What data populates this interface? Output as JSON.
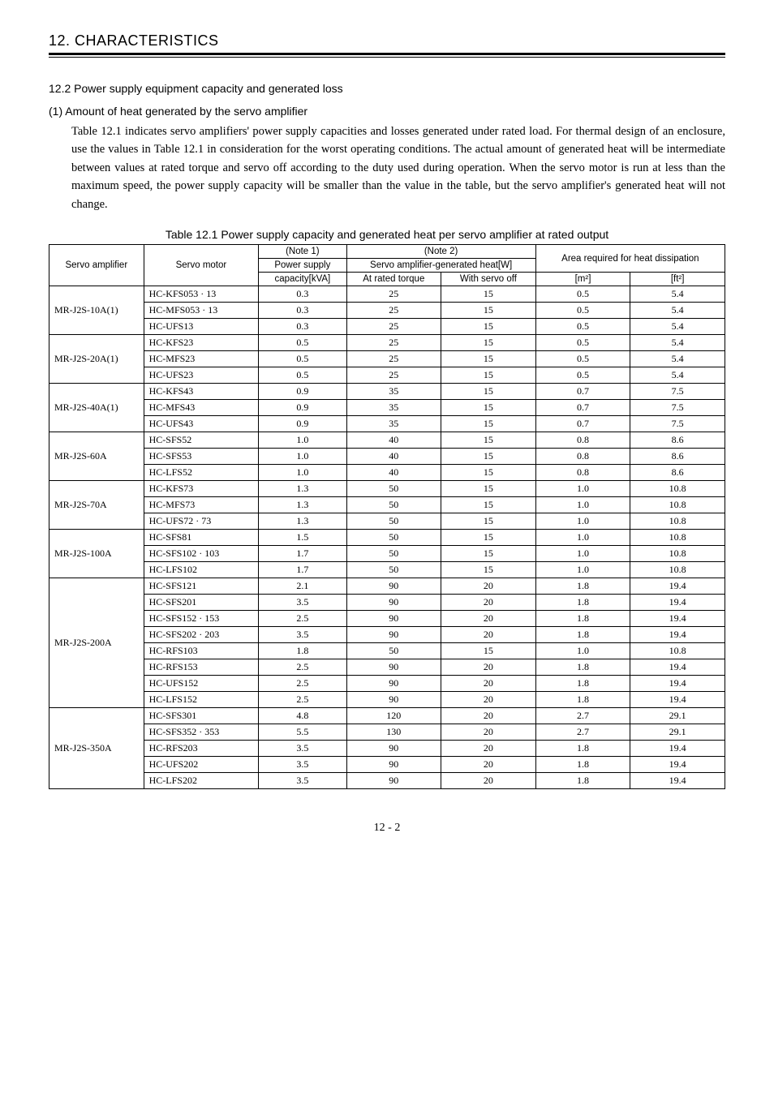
{
  "header": {
    "section_number": "12.",
    "section_title": "CHARACTERISTICS"
  },
  "subsection": {
    "number": "12.2",
    "title": "Power supply equipment capacity and generated loss"
  },
  "subsub": {
    "number": "(1)",
    "title": "Amount of heat generated by the servo amplifier"
  },
  "paragraph": "Table 12.1 indicates servo amplifiers' power supply capacities and losses generated under rated load. For thermal design of an enclosure, use the values in Table 12.1 in consideration for the worst operating conditions. The actual amount of generated heat will be intermediate between values at rated torque and servo off according to the duty used during operation. When the servo motor is run at less than the maximum speed, the power supply capacity will be smaller than the value in the table, but the servo amplifier's generated heat will not change.",
  "table": {
    "caption": "Table 12.1 Power supply capacity and generated heat per servo amplifier at rated output",
    "columns": {
      "amp": "Servo amplifier",
      "motor": "Servo motor",
      "note1": "(Note 1)",
      "power": "Power supply",
      "capacity": "capacity[kVA]",
      "note2": "(Note 2)",
      "heat": "Servo amplifier-generated heat[W]",
      "rated": "At rated torque",
      "off": "With servo off",
      "area": "Area required for heat dissipation",
      "m2": "[m²]",
      "ft2": "[ft²]"
    },
    "groups": [
      {
        "amp": "MR-J2S-10A(1)",
        "rows": [
          {
            "motor": "HC-KFS053 · 13",
            "cap": "0.3",
            "rt": "25",
            "off": "15",
            "m2": "0.5",
            "ft2": "5.4"
          },
          {
            "motor": "HC-MFS053 · 13",
            "cap": "0.3",
            "rt": "25",
            "off": "15",
            "m2": "0.5",
            "ft2": "5.4"
          },
          {
            "motor": "HC-UFS13",
            "cap": "0.3",
            "rt": "25",
            "off": "15",
            "m2": "0.5",
            "ft2": "5.4"
          }
        ]
      },
      {
        "amp": "MR-J2S-20A(1)",
        "rows": [
          {
            "motor": "HC-KFS23",
            "cap": "0.5",
            "rt": "25",
            "off": "15",
            "m2": "0.5",
            "ft2": "5.4"
          },
          {
            "motor": "HC-MFS23",
            "cap": "0.5",
            "rt": "25",
            "off": "15",
            "m2": "0.5",
            "ft2": "5.4"
          },
          {
            "motor": "HC-UFS23",
            "cap": "0.5",
            "rt": "25",
            "off": "15",
            "m2": "0.5",
            "ft2": "5.4"
          }
        ]
      },
      {
        "amp": "MR-J2S-40A(1)",
        "rows": [
          {
            "motor": "HC-KFS43",
            "cap": "0.9",
            "rt": "35",
            "off": "15",
            "m2": "0.7",
            "ft2": "7.5"
          },
          {
            "motor": "HC-MFS43",
            "cap": "0.9",
            "rt": "35",
            "off": "15",
            "m2": "0.7",
            "ft2": "7.5"
          },
          {
            "motor": "HC-UFS43",
            "cap": "0.9",
            "rt": "35",
            "off": "15",
            "m2": "0.7",
            "ft2": "7.5"
          }
        ]
      },
      {
        "amp": "MR-J2S-60A",
        "rows": [
          {
            "motor": "HC-SFS52",
            "cap": "1.0",
            "rt": "40",
            "off": "15",
            "m2": "0.8",
            "ft2": "8.6"
          },
          {
            "motor": "HC-SFS53",
            "cap": "1.0",
            "rt": "40",
            "off": "15",
            "m2": "0.8",
            "ft2": "8.6"
          },
          {
            "motor": "HC-LFS52",
            "cap": "1.0",
            "rt": "40",
            "off": "15",
            "m2": "0.8",
            "ft2": "8.6"
          }
        ]
      },
      {
        "amp": "MR-J2S-70A",
        "rows": [
          {
            "motor": "HC-KFS73",
            "cap": "1.3",
            "rt": "50",
            "off": "15",
            "m2": "1.0",
            "ft2": "10.8"
          },
          {
            "motor": "HC-MFS73",
            "cap": "1.3",
            "rt": "50",
            "off": "15",
            "m2": "1.0",
            "ft2": "10.8"
          },
          {
            "motor": "HC-UFS72 · 73",
            "cap": "1.3",
            "rt": "50",
            "off": "15",
            "m2": "1.0",
            "ft2": "10.8"
          }
        ]
      },
      {
        "amp": "MR-J2S-100A",
        "rows": [
          {
            "motor": "HC-SFS81",
            "cap": "1.5",
            "rt": "50",
            "off": "15",
            "m2": "1.0",
            "ft2": "10.8"
          },
          {
            "motor": "HC-SFS102 · 103",
            "cap": "1.7",
            "rt": "50",
            "off": "15",
            "m2": "1.0",
            "ft2": "10.8"
          },
          {
            "motor": "HC-LFS102",
            "cap": "1.7",
            "rt": "50",
            "off": "15",
            "m2": "1.0",
            "ft2": "10.8"
          }
        ]
      },
      {
        "amp": "MR-J2S-200A",
        "rows": [
          {
            "motor": "HC-SFS121",
            "cap": "2.1",
            "rt": "90",
            "off": "20",
            "m2": "1.8",
            "ft2": "19.4"
          },
          {
            "motor": "HC-SFS201",
            "cap": "3.5",
            "rt": "90",
            "off": "20",
            "m2": "1.8",
            "ft2": "19.4"
          },
          {
            "motor": "HC-SFS152 · 153",
            "cap": "2.5",
            "rt": "90",
            "off": "20",
            "m2": "1.8",
            "ft2": "19.4"
          },
          {
            "motor": "HC-SFS202 · 203",
            "cap": "3.5",
            "rt": "90",
            "off": "20",
            "m2": "1.8",
            "ft2": "19.4"
          },
          {
            "motor": "HC-RFS103",
            "cap": "1.8",
            "rt": "50",
            "off": "15",
            "m2": "1.0",
            "ft2": "10.8"
          },
          {
            "motor": "HC-RFS153",
            "cap": "2.5",
            "rt": "90",
            "off": "20",
            "m2": "1.8",
            "ft2": "19.4"
          },
          {
            "motor": "HC-UFS152",
            "cap": "2.5",
            "rt": "90",
            "off": "20",
            "m2": "1.8",
            "ft2": "19.4"
          },
          {
            "motor": "HC-LFS152",
            "cap": "2.5",
            "rt": "90",
            "off": "20",
            "m2": "1.8",
            "ft2": "19.4"
          }
        ]
      },
      {
        "amp": "MR-J2S-350A",
        "rows": [
          {
            "motor": "HC-SFS301",
            "cap": "4.8",
            "rt": "120",
            "off": "20",
            "m2": "2.7",
            "ft2": "29.1"
          },
          {
            "motor": "HC-SFS352 · 353",
            "cap": "5.5",
            "rt": "130",
            "off": "20",
            "m2": "2.7",
            "ft2": "29.1"
          },
          {
            "motor": "HC-RFS203",
            "cap": "3.5",
            "rt": "90",
            "off": "20",
            "m2": "1.8",
            "ft2": "19.4"
          },
          {
            "motor": "HC-UFS202",
            "cap": "3.5",
            "rt": "90",
            "off": "20",
            "m2": "1.8",
            "ft2": "19.4"
          },
          {
            "motor": "HC-LFS202",
            "cap": "3.5",
            "rt": "90",
            "off": "20",
            "m2": "1.8",
            "ft2": "19.4"
          }
        ]
      }
    ]
  },
  "page_number": "12 -  2",
  "col_widths": {
    "amp": "14%",
    "motor": "17%",
    "cap": "13%",
    "rated": "14%",
    "off": "14%",
    "m2": "14%",
    "ft2": "14%"
  }
}
